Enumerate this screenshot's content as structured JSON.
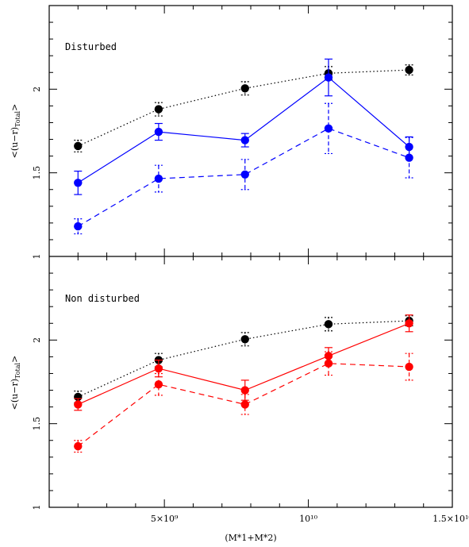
{
  "chart_data": [
    {
      "type": "scatter",
      "panel": "top",
      "annotation": "Disturbed",
      "ylabel": "<(u-r)_Total>",
      "xlim": [
        1000000000,
        15000000000
      ],
      "ylim": [
        1,
        2.5
      ],
      "yticks": [
        1,
        1.5,
        2
      ],
      "series": [
        {
          "style": "dotted",
          "color": "#000000",
          "x": [
            2000000000,
            4800000000,
            7800000000,
            10700000000,
            13500000000
          ],
          "y": [
            1.66,
            1.88,
            2.005,
            2.095,
            2.115
          ],
          "err": [
            0.035,
            0.04,
            0.04,
            0.04,
            0.03
          ]
        },
        {
          "style": "solid",
          "color": "#0000ff",
          "x": [
            2000000000,
            4800000000,
            7800000000,
            10700000000,
            13500000000
          ],
          "y": [
            1.44,
            1.745,
            1.695,
            2.07,
            1.655
          ],
          "err": [
            0.07,
            0.05,
            0.04,
            0.11,
            0.06
          ]
        },
        {
          "style": "dashed",
          "color": "#0000ff",
          "x": [
            2000000000,
            4800000000,
            7800000000,
            10700000000,
            13500000000
          ],
          "y": [
            1.18,
            1.465,
            1.49,
            1.765,
            1.59
          ],
          "err": [
            0.045,
            0.08,
            0.09,
            0.15,
            0.12
          ]
        }
      ]
    },
    {
      "type": "scatter",
      "panel": "bottom",
      "annotation": "Non disturbed",
      "ylabel": "<(u-r)_Total>",
      "xlabel": "(M*1+M*2)",
      "xlim": [
        1000000000,
        15000000000
      ],
      "ylim": [
        1,
        2.5
      ],
      "yticks": [
        1,
        1.5,
        2
      ],
      "xticks": [
        {
          "value": 5000000000,
          "label": "5×10⁹"
        },
        {
          "value": 10000000000,
          "label": "10¹⁰"
        },
        {
          "value": 15000000000,
          "label": "1.5×10¹⁰"
        }
      ],
      "series": [
        {
          "style": "dotted",
          "color": "#000000",
          "x": [
            2000000000,
            4800000000,
            7800000000,
            10700000000,
            13500000000
          ],
          "y": [
            1.66,
            1.88,
            2.005,
            2.095,
            2.115
          ],
          "err": [
            0.035,
            0.04,
            0.04,
            0.04,
            0.03
          ]
        },
        {
          "style": "solid",
          "color": "#ff0000",
          "x": [
            2000000000,
            4800000000,
            7800000000,
            10700000000,
            13500000000
          ],
          "y": [
            1.615,
            1.83,
            1.7,
            1.905,
            2.1
          ],
          "err": [
            0.035,
            0.05,
            0.06,
            0.05,
            0.05
          ]
        },
        {
          "style": "dashed",
          "color": "#ff0000",
          "x": [
            2000000000,
            4800000000,
            7800000000,
            10700000000,
            13500000000
          ],
          "y": [
            1.365,
            1.735,
            1.615,
            1.86,
            1.84
          ],
          "err": [
            0.035,
            0.065,
            0.06,
            0.07,
            0.08
          ]
        }
      ]
    }
  ]
}
